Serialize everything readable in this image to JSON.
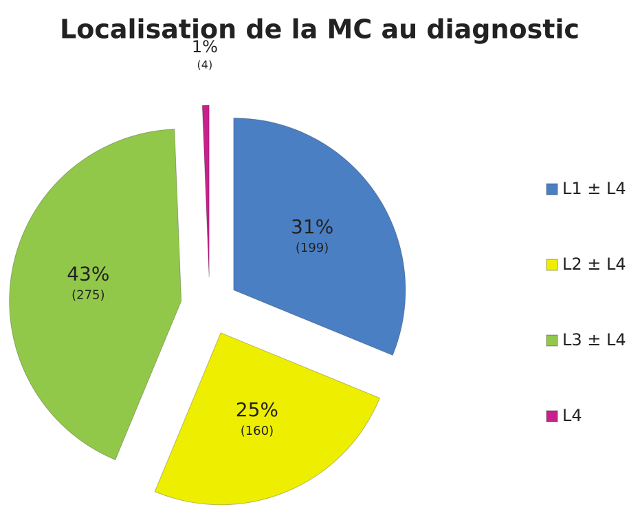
{
  "chart_data": {
    "type": "pie",
    "title": "Localisation de la MC au diagnostic",
    "categories": [
      "L1 ± L4",
      "L2 ± L4",
      "L3 ± L4",
      "L4"
    ],
    "values": [
      199,
      160,
      275,
      4
    ],
    "value_labels": [
      "(199)",
      "(160)",
      "(275)",
      "(4)"
    ],
    "percentages": [
      31,
      25,
      43,
      1
    ],
    "percentage_labels": [
      "31%",
      "25%",
      "43%",
      "1%"
    ],
    "colors": [
      "#4a7fc4",
      "#eeee00",
      "#92c84a",
      "#c8208c"
    ],
    "legend": "right"
  }
}
